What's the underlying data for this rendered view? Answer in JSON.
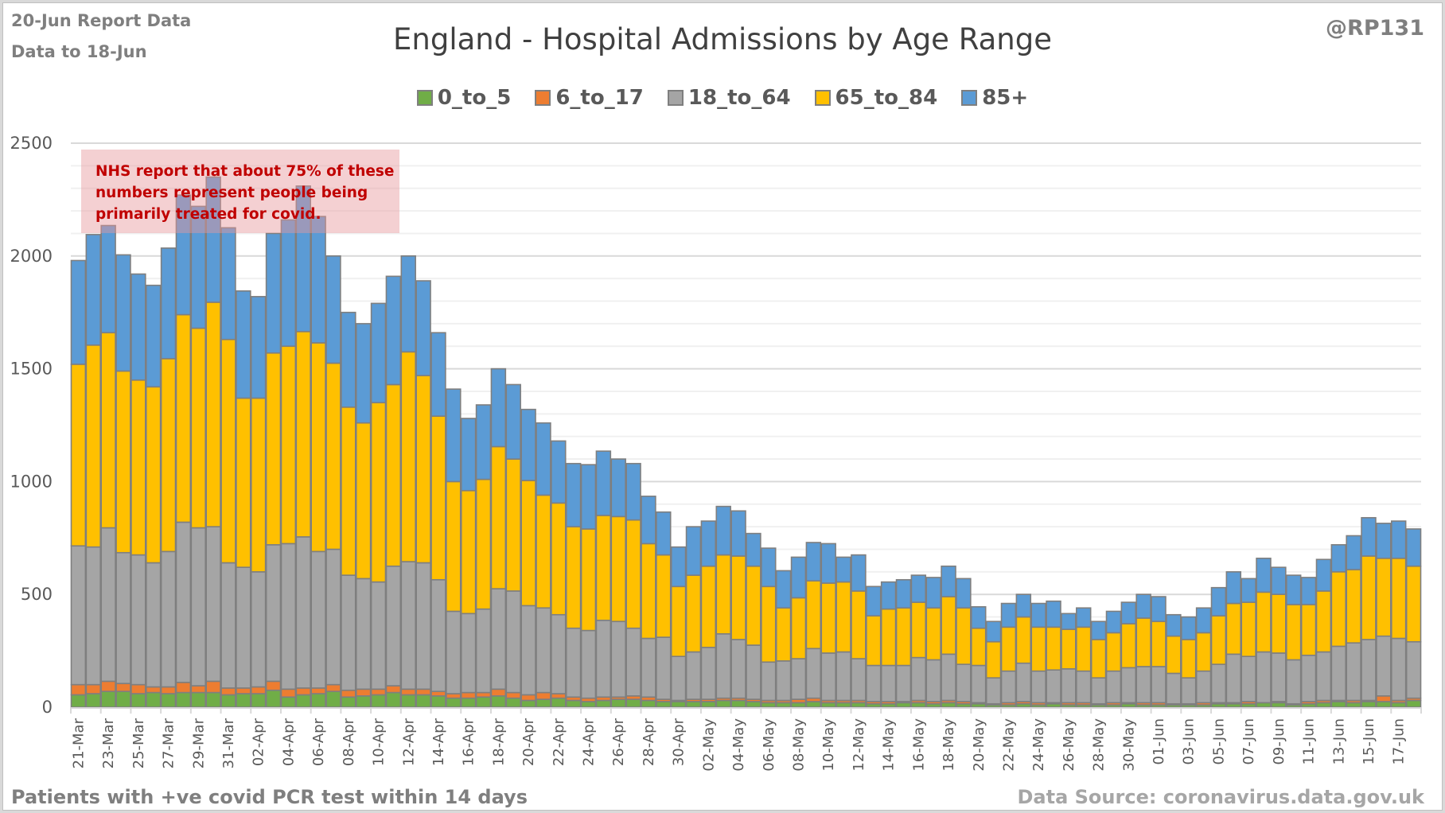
{
  "header": {
    "report_line1": "20-Jun Report Data",
    "report_line2": "Data to 18-Jun",
    "handle": "@RP131"
  },
  "footer": {
    "left": "Patients with  +ve covid PCR test within 14 days",
    "right": "Data Source: coronavirus.data.gov.uk"
  },
  "annotation": {
    "lines": [
      "NHS report that about 75% of these",
      "numbers represent people being",
      "primarily treated for covid."
    ],
    "color": "#c00000"
  },
  "chart_data": {
    "type": "bar",
    "stacked": true,
    "title": "England - Hospital Admissions by Age Range",
    "xlabel": "",
    "ylabel": "",
    "ylim": [
      0,
      2500
    ],
    "yticks": [
      0,
      500,
      1000,
      1500,
      2000,
      2500
    ],
    "grid": true,
    "legend_position": "top-center",
    "categories": [
      "21-Mar",
      "22-Mar",
      "23-Mar",
      "24-Mar",
      "25-Mar",
      "26-Mar",
      "27-Mar",
      "28-Mar",
      "29-Mar",
      "30-Mar",
      "31-Mar",
      "01-Apr",
      "02-Apr",
      "03-Apr",
      "04-Apr",
      "05-Apr",
      "06-Apr",
      "07-Apr",
      "08-Apr",
      "09-Apr",
      "10-Apr",
      "11-Apr",
      "12-Apr",
      "13-Apr",
      "14-Apr",
      "15-Apr",
      "16-Apr",
      "17-Apr",
      "18-Apr",
      "19-Apr",
      "20-Apr",
      "21-Apr",
      "22-Apr",
      "23-Apr",
      "24-Apr",
      "25-Apr",
      "26-Apr",
      "27-Apr",
      "28-Apr",
      "29-Apr",
      "30-Apr",
      "01-May",
      "02-May",
      "03-May",
      "04-May",
      "05-May",
      "06-May",
      "07-May",
      "08-May",
      "09-May",
      "10-May",
      "11-May",
      "12-May",
      "13-May",
      "14-May",
      "15-May",
      "16-May",
      "17-May",
      "18-May",
      "19-May",
      "20-May",
      "21-May",
      "22-May",
      "23-May",
      "24-May",
      "25-May",
      "26-May",
      "27-May",
      "28-May",
      "29-May",
      "30-May",
      "31-May",
      "01-Jun",
      "02-Jun",
      "03-Jun",
      "04-Jun",
      "05-Jun",
      "06-Jun",
      "07-Jun",
      "08-Jun",
      "09-Jun",
      "10-Jun",
      "11-Jun",
      "12-Jun",
      "13-Jun",
      "14-Jun",
      "15-Jun",
      "16-Jun",
      "17-Jun",
      "18-Jun"
    ],
    "tick_every": 2,
    "series": [
      {
        "name": "0_to_5",
        "color": "#70ad47",
        "values": [
          55,
          60,
          70,
          70,
          60,
          65,
          60,
          65,
          65,
          65,
          55,
          60,
          60,
          75,
          45,
          55,
          60,
          70,
          45,
          50,
          55,
          65,
          55,
          55,
          50,
          40,
          40,
          45,
          50,
          40,
          30,
          35,
          40,
          30,
          25,
          30,
          35,
          35,
          30,
          25,
          25,
          25,
          25,
          30,
          30,
          25,
          20,
          20,
          20,
          25,
          20,
          20,
          20,
          15,
          15,
          20,
          20,
          15,
          20,
          15,
          15,
          10,
          10,
          15,
          10,
          15,
          10,
          10,
          10,
          10,
          15,
          10,
          10,
          10,
          10,
          10,
          15,
          15,
          15,
          20,
          20,
          10,
          15,
          20,
          25,
          20,
          25,
          25,
          20,
          30
        ]
      },
      {
        "name": "6_to_17",
        "color": "#ed7d31",
        "values": [
          45,
          40,
          45,
          35,
          40,
          25,
          30,
          45,
          30,
          50,
          30,
          25,
          30,
          40,
          35,
          30,
          25,
          30,
          30,
          30,
          25,
          30,
          25,
          25,
          20,
          20,
          25,
          20,
          30,
          25,
          25,
          30,
          20,
          15,
          15,
          15,
          10,
          15,
          15,
          10,
          5,
          10,
          10,
          10,
          10,
          10,
          10,
          10,
          15,
          15,
          10,
          10,
          10,
          10,
          10,
          5,
          10,
          10,
          10,
          10,
          5,
          5,
          10,
          10,
          10,
          5,
          10,
          10,
          5,
          10,
          5,
          10,
          10,
          5,
          5,
          10,
          5,
          5,
          10,
          0,
          5,
          5,
          10,
          10,
          5,
          10,
          5,
          25,
          10,
          10
        ]
      },
      {
        "name": "18_to_64",
        "color": "#a5a5a5",
        "values": [
          615,
          610,
          680,
          580,
          575,
          550,
          600,
          710,
          700,
          685,
          555,
          535,
          510,
          605,
          645,
          670,
          605,
          600,
          510,
          490,
          475,
          530,
          565,
          560,
          495,
          365,
          350,
          370,
          445,
          450,
          395,
          375,
          350,
          305,
          300,
          340,
          335,
          300,
          260,
          275,
          195,
          210,
          230,
          285,
          260,
          240,
          170,
          175,
          180,
          220,
          210,
          215,
          185,
          160,
          160,
          160,
          190,
          185,
          205,
          165,
          165,
          115,
          140,
          170,
          140,
          145,
          150,
          140,
          115,
          140,
          155,
          160,
          160,
          135,
          115,
          140,
          170,
          215,
          200,
          225,
          215,
          195,
          205,
          215,
          240,
          255,
          270,
          265,
          275,
          250
        ]
      },
      {
        "name": "65_to_84",
        "color": "#ffc000",
        "values": [
          805,
          895,
          865,
          805,
          775,
          780,
          855,
          920,
          885,
          995,
          990,
          750,
          770,
          850,
          875,
          910,
          925,
          825,
          745,
          690,
          795,
          805,
          930,
          830,
          725,
          575,
          545,
          575,
          630,
          585,
          555,
          500,
          495,
          450,
          450,
          465,
          465,
          480,
          420,
          365,
          310,
          340,
          360,
          350,
          370,
          350,
          335,
          235,
          270,
          300,
          310,
          310,
          300,
          220,
          250,
          255,
          245,
          230,
          255,
          250,
          165,
          160,
          195,
          205,
          195,
          190,
          175,
          195,
          170,
          170,
          195,
          215,
          200,
          165,
          170,
          170,
          215,
          225,
          240,
          265,
          260,
          245,
          225,
          270,
          330,
          325,
          370,
          345,
          355,
          335
        ]
      },
      {
        "name": "85+",
        "color": "#5b9bd5",
        "values": [
          460,
          490,
          475,
          515,
          470,
          450,
          490,
          530,
          540,
          555,
          495,
          475,
          450,
          530,
          560,
          645,
          560,
          475,
          420,
          440,
          440,
          480,
          425,
          420,
          370,
          410,
          320,
          330,
          345,
          330,
          315,
          320,
          275,
          280,
          285,
          285,
          255,
          250,
          210,
          190,
          175,
          215,
          200,
          215,
          200,
          145,
          170,
          165,
          180,
          170,
          175,
          110,
          160,
          130,
          120,
          125,
          120,
          135,
          135,
          130,
          95,
          90,
          105,
          100,
          105,
          115,
          70,
          85,
          80,
          95,
          95,
          105,
          110,
          95,
          100,
          110,
          125,
          140,
          105,
          150,
          120,
          130,
          120,
          140,
          120,
          150,
          170,
          155,
          165,
          165
        ]
      }
    ]
  }
}
